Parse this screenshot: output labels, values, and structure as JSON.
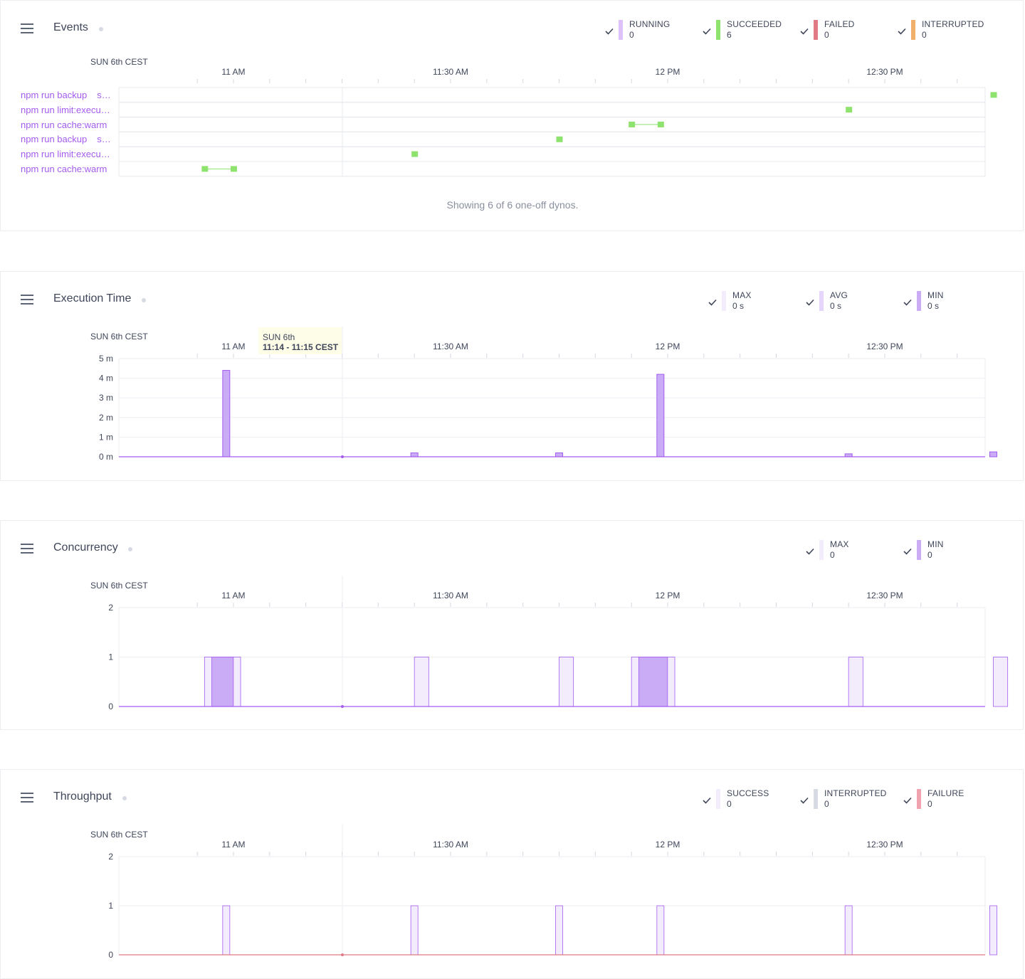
{
  "colors": {
    "purple": "#a45cf0",
    "purple_fill": "#c9acf5",
    "purple_light": "#f3ecfd",
    "green": "#8ee36e",
    "red": "#e07a85",
    "orange": "#f0b06c",
    "grey": "#d6dae2",
    "pink": "#f0a3ae"
  },
  "time_axis": {
    "date_label": "SUN 6th CEST",
    "ticks": [
      "11 AM",
      "11:30 AM",
      "12 PM",
      "12:30 PM"
    ]
  },
  "events": {
    "title": "Events",
    "legend": [
      {
        "label": "RUNNING",
        "value": "0",
        "color": "#dcc2f8"
      },
      {
        "label": "SUCCEEDED",
        "value": "6",
        "color": "#8ee36e"
      },
      {
        "label": "FAILED",
        "value": "0",
        "color": "#e07a85"
      },
      {
        "label": "INTERRUPTED",
        "value": "0",
        "color": "#f0b06c"
      }
    ],
    "dynos": [
      {
        "name": "npm run backup",
        "suffix": "s…"
      },
      {
        "name": "npm run limit:execu…",
        "suffix": ""
      },
      {
        "name": "npm run cache:warm",
        "suffix": ""
      },
      {
        "name": "npm run backup",
        "suffix": "s…"
      },
      {
        "name": "npm run limit:execu…",
        "suffix": ""
      },
      {
        "name": "npm run cache:warm",
        "suffix": ""
      }
    ],
    "showing": "Showing 6 of 6 one-off dynos."
  },
  "execution": {
    "title": "Execution Time",
    "legend": [
      {
        "label": "MAX",
        "value": "0 s",
        "color": "#f3ecfd"
      },
      {
        "label": "AVG",
        "value": "0 s",
        "color": "#e5d4fb"
      },
      {
        "label": "MIN",
        "value": "0 s",
        "color": "#c9acf5"
      }
    ],
    "yticks": [
      "5 m",
      "4 m",
      "3 m",
      "2 m",
      "1 m",
      "0 m"
    ],
    "tooltip": {
      "date": "SUN 6th",
      "range": "11:14 - 11:15 CEST"
    }
  },
  "concurrency": {
    "title": "Concurrency",
    "legend": [
      {
        "label": "MAX",
        "value": "0",
        "color": "#f3ecfd"
      },
      {
        "label": "MIN",
        "value": "0",
        "color": "#c9acf5"
      }
    ],
    "yticks": [
      "2",
      "1",
      "0"
    ]
  },
  "throughput": {
    "title": "Throughput",
    "legend": [
      {
        "label": "SUCCESS",
        "value": "0",
        "color": "#f3ecfd"
      },
      {
        "label": "INTERRUPTED",
        "value": "0",
        "color": "#d6dae2"
      },
      {
        "label": "FAILURE",
        "value": "0",
        "color": "#f0a3ae"
      }
    ],
    "yticks": [
      "2",
      "1",
      "0"
    ]
  },
  "chart_data": [
    {
      "type": "bar",
      "title": "Execution Time",
      "ylabel": "",
      "ylim": [
        0,
        5
      ],
      "y_unit": "m",
      "x_range": [
        "10:50",
        "12:50"
      ],
      "xticks": [
        "11 AM",
        "11:30 AM",
        "12 PM",
        "12:30 PM"
      ],
      "series": [
        {
          "name": "MAX",
          "points": [
            {
              "x": "10:59",
              "y": 4.4
            },
            {
              "x": "11:25",
              "y": 0.2
            },
            {
              "x": "11:45",
              "y": 0.2
            },
            {
              "x": "11:59",
              "y": 4.2
            },
            {
              "x": "12:25",
              "y": 0.15
            },
            {
              "x": "12:45",
              "y": 0.25
            }
          ]
        }
      ]
    },
    {
      "type": "bar",
      "title": "Concurrency",
      "ylim": [
        0,
        2
      ],
      "xticks": [
        "11 AM",
        "11:30 AM",
        "12 PM",
        "12:30 PM"
      ],
      "series": [
        {
          "name": "MAX",
          "spans": [
            {
              "from": "10:56",
              "to": "11:00",
              "y": 1
            },
            {
              "from": "11:25",
              "to": "11:26",
              "y": 1
            },
            {
              "from": "11:45",
              "to": "11:46",
              "y": 1
            },
            {
              "from": "11:55",
              "to": "12:00",
              "y": 1
            },
            {
              "from": "12:25",
              "to": "12:26",
              "y": 1
            },
            {
              "from": "12:45",
              "to": "12:46",
              "y": 1
            }
          ]
        },
        {
          "name": "MIN",
          "spans": [
            {
              "from": "10:57",
              "to": "10:59",
              "y": 1
            },
            {
              "from": "11:56",
              "to": "11:59",
              "y": 1
            }
          ]
        }
      ]
    },
    {
      "type": "bar",
      "title": "Throughput",
      "ylim": [
        0,
        2
      ],
      "xticks": [
        "11 AM",
        "11:30 AM",
        "12 PM",
        "12:30 PM"
      ],
      "series": [
        {
          "name": "SUCCESS",
          "points": [
            {
              "x": "10:59",
              "y": 1
            },
            {
              "x": "11:25",
              "y": 1
            },
            {
              "x": "11:45",
              "y": 1
            },
            {
              "x": "11:59",
              "y": 1
            },
            {
              "x": "12:25",
              "y": 1
            },
            {
              "x": "12:45",
              "y": 1
            }
          ]
        }
      ]
    }
  ],
  "events_data": {
    "rows": [
      {
        "start": "12:45",
        "end": "12:45"
      },
      {
        "start": "12:25",
        "end": "12:25"
      },
      {
        "start": "11:55",
        "end": "11:59"
      },
      {
        "start": "11:45",
        "end": "11:45"
      },
      {
        "start": "11:25",
        "end": "11:25"
      },
      {
        "start": "10:56",
        "end": "11:00"
      }
    ]
  }
}
